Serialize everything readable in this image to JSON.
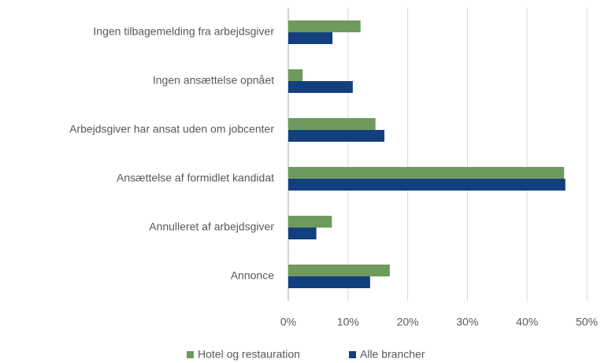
{
  "chart_data": {
    "type": "hbar",
    "categories": [
      "Ingen tilbagemelding fra arbejdsgiver",
      "Ingen ansættelse opnået",
      "Arbejdsgiver har ansat uden om jobcenter",
      "Ansættelse af formidlet kandidat",
      "Annulleret af arbejdsgiver",
      "Annonce"
    ],
    "series": [
      {
        "name": "Hotel og restauration",
        "color": "#6e9a5e",
        "values": [
          12.1,
          2.4,
          14.6,
          46.2,
          7.3,
          17.0
        ]
      },
      {
        "name": "Alle brancher",
        "color": "#123f7e",
        "values": [
          7.4,
          10.8,
          16.1,
          46.4,
          4.7,
          13.7
        ]
      }
    ],
    "xlim": [
      0,
      50
    ],
    "xticks": [
      {
        "value": 0,
        "label": "0%"
      },
      {
        "value": 10,
        "label": "10%"
      },
      {
        "value": 20,
        "label": "20%"
      },
      {
        "value": 30,
        "label": "30%"
      },
      {
        "value": 40,
        "label": "40%"
      },
      {
        "value": 50,
        "label": "50%"
      }
    ],
    "grid": true,
    "legend": "bottom"
  }
}
